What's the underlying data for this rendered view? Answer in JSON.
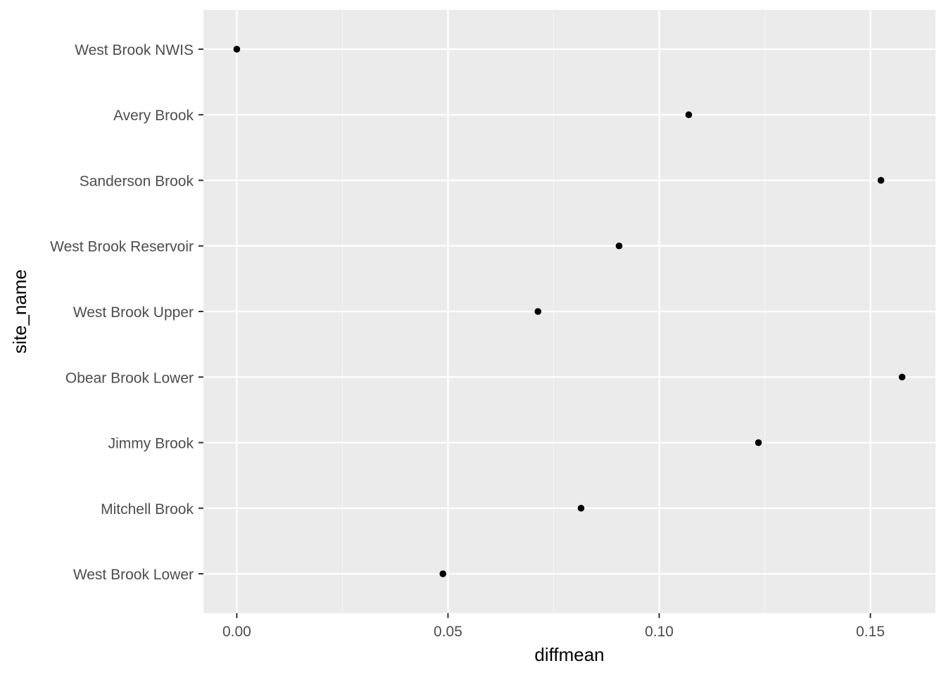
{
  "chart_data": {
    "type": "scatter",
    "title": "",
    "xlabel": "diffmean",
    "ylabel": "site_name",
    "categories": [
      "West Brook NWIS",
      "Avery Brook",
      "Sanderson Brook",
      "West Brook Reservoir",
      "West Brook Upper",
      "Obear Brook Lower",
      "Jimmy Brook",
      "Mitchell Brook",
      "West Brook Lower"
    ],
    "values": [
      0.0,
      0.107,
      0.1525,
      0.0905,
      0.0713,
      0.1575,
      0.1235,
      0.0815,
      0.0488
    ],
    "x_ticks": [
      0.0,
      0.05,
      0.1,
      0.15
    ],
    "x_tick_labels": [
      "0.00",
      "0.05",
      "0.10",
      "0.15"
    ],
    "xlim": [
      -0.0079,
      0.1654
    ],
    "grid": true,
    "legend": "none",
    "colors": {
      "panel_background": "#ebebeb",
      "grid_major": "#ffffff",
      "grid_minor": "#f5f5f5",
      "point": "#000000",
      "tick": "#333333",
      "tick_label": "#4d4d4d",
      "axis_title": "#000000"
    }
  }
}
